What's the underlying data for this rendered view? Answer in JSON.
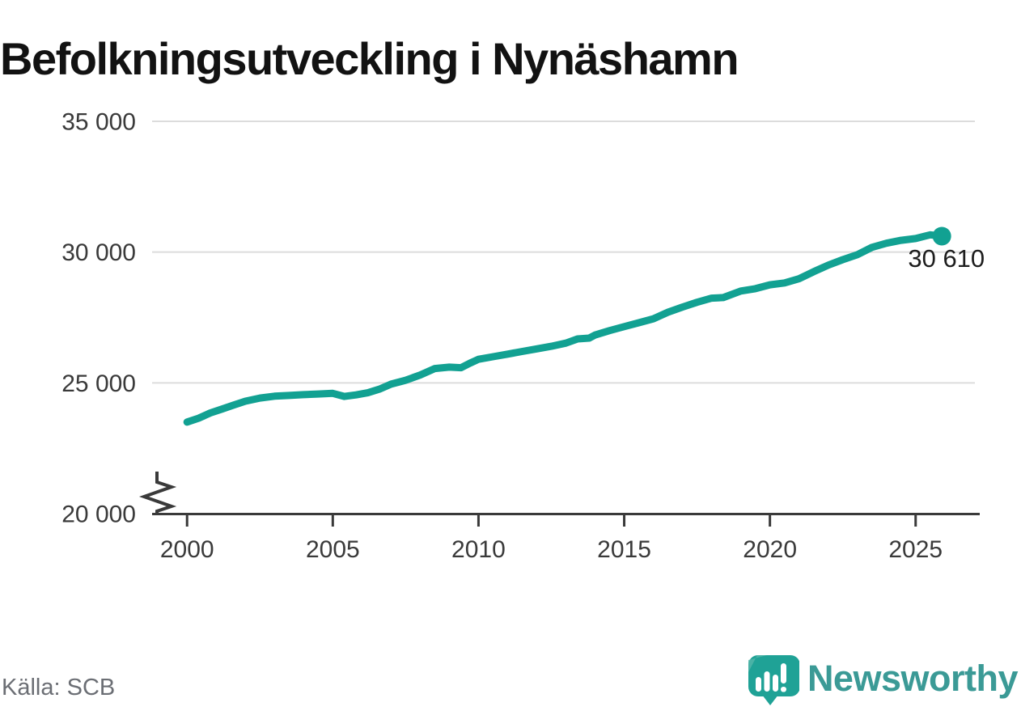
{
  "page": {
    "source": "Källa: SCB"
  },
  "branding": {
    "wordmark": "Newsworthy",
    "icon": "newsworthy-speech-bubble-bar-chart-icon",
    "icon_color": "#1fa296",
    "icon_color_light": "#55b7aa",
    "wordmark_color": "#3b9a96"
  },
  "chart_data": {
    "type": "line",
    "title": "Befolkningsutveckling i Nynäshamn",
    "xlabel": "",
    "ylabel": "",
    "grid": "horizontal",
    "legend": "none",
    "axis_break_at_bottom": true,
    "line_color": "#12a192",
    "xlim": [
      1998.8,
      2027.2
    ],
    "ylim": [
      20000,
      35000
    ],
    "x_ticks": [
      "2000",
      "2005",
      "2010",
      "2015",
      "2020",
      "2025"
    ],
    "x_tick_values": [
      2000,
      2005,
      2010,
      2015,
      2020,
      2025
    ],
    "y_ticks": [
      {
        "value": 20000,
        "label": "20 000"
      },
      {
        "value": 25000,
        "label": "25 000"
      },
      {
        "value": 30000,
        "label": "30 000"
      },
      {
        "value": 35000,
        "label": "35 000"
      }
    ],
    "series": [
      {
        "name": "Befolkning i Nynäshamn",
        "end_label": "30 610",
        "end_value": 30610,
        "points": [
          [
            2000.0,
            23500
          ],
          [
            2000.4,
            23650
          ],
          [
            2000.8,
            23850
          ],
          [
            2001.2,
            24000
          ],
          [
            2001.6,
            24150
          ],
          [
            2002.0,
            24300
          ],
          [
            2002.5,
            24420
          ],
          [
            2003.0,
            24490
          ],
          [
            2003.5,
            24520
          ],
          [
            2004.0,
            24550
          ],
          [
            2004.5,
            24575
          ],
          [
            2005.0,
            24600
          ],
          [
            2005.4,
            24480
          ],
          [
            2005.8,
            24540
          ],
          [
            2006.2,
            24620
          ],
          [
            2006.6,
            24760
          ],
          [
            2007.0,
            24950
          ],
          [
            2007.5,
            25100
          ],
          [
            2008.0,
            25300
          ],
          [
            2008.5,
            25550
          ],
          [
            2009.0,
            25600
          ],
          [
            2009.4,
            25580
          ],
          [
            2009.7,
            25750
          ],
          [
            2010.0,
            25900
          ],
          [
            2010.5,
            26000
          ],
          [
            2011.0,
            26100
          ],
          [
            2011.5,
            26200
          ],
          [
            2012.0,
            26300
          ],
          [
            2012.5,
            26400
          ],
          [
            2013.0,
            26520
          ],
          [
            2013.4,
            26680
          ],
          [
            2013.8,
            26710
          ],
          [
            2014.0,
            26830
          ],
          [
            2014.5,
            27000
          ],
          [
            2015.0,
            27150
          ],
          [
            2015.5,
            27300
          ],
          [
            2016.0,
            27450
          ],
          [
            2016.5,
            27700
          ],
          [
            2017.0,
            27900
          ],
          [
            2017.5,
            28080
          ],
          [
            2018.0,
            28240
          ],
          [
            2018.4,
            28260
          ],
          [
            2019.0,
            28510
          ],
          [
            2019.5,
            28600
          ],
          [
            2020.0,
            28750
          ],
          [
            2020.5,
            28820
          ],
          [
            2021.0,
            28980
          ],
          [
            2021.5,
            29250
          ],
          [
            2022.0,
            29500
          ],
          [
            2022.5,
            29710
          ],
          [
            2023.0,
            29900
          ],
          [
            2023.5,
            30180
          ],
          [
            2024.0,
            30340
          ],
          [
            2024.5,
            30450
          ],
          [
            2025.0,
            30520
          ],
          [
            2025.5,
            30660
          ],
          [
            2025.9,
            30610
          ]
        ]
      }
    ]
  }
}
